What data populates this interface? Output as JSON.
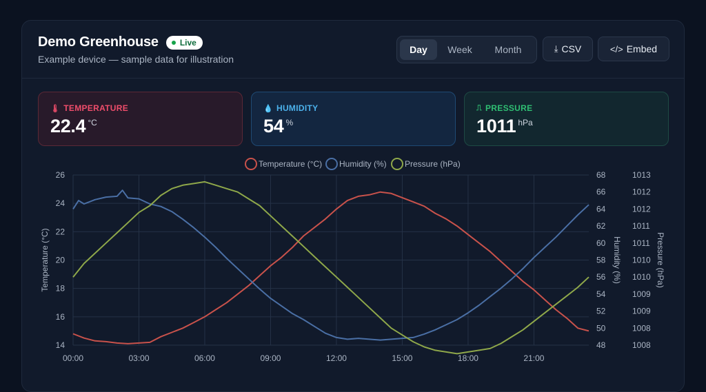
{
  "header": {
    "title": "Demo Greenhouse",
    "live_label": "Live",
    "subtitle": "Example device — sample data for illustration"
  },
  "range_tabs": [
    {
      "label": "Day",
      "active": true
    },
    {
      "label": "Week",
      "active": false
    },
    {
      "label": "Month",
      "active": false
    }
  ],
  "toolbar": {
    "csv_label": "CSV",
    "csv_icon": "download-icon",
    "embed_label": "Embed",
    "embed_icon": "code-icon"
  },
  "stats": {
    "temperature": {
      "label": "TEMPERATURE",
      "value": "22.4",
      "unit": "°C",
      "icon": "thermometer-icon",
      "color": "#ef4d6b"
    },
    "humidity": {
      "label": "HUMIDITY",
      "value": "54",
      "unit": "%",
      "icon": "droplet-icon",
      "color": "#4cb2ec"
    },
    "pressure": {
      "label": "PRESSURE",
      "value": "1011",
      "unit": "hPa",
      "icon": "gauge-icon",
      "color": "#2fbf73"
    }
  },
  "chart_data": {
    "type": "line",
    "x_ticks": [
      "00:00",
      "03:00",
      "06:00",
      "09:00",
      "12:00",
      "15:00",
      "18:00",
      "21:00"
    ],
    "legend_position": "top-center",
    "grid": true,
    "axes": {
      "y_left": {
        "label": "Temperature (°C)",
        "min": 14,
        "max": 26,
        "ticks": [
          "14",
          "16",
          "18",
          "20",
          "22",
          "24",
          "26"
        ]
      },
      "y_right1": {
        "label": "Humidity (%)",
        "min": 48,
        "max": 68,
        "ticks": [
          "48",
          "50",
          "52",
          "54",
          "56",
          "58",
          "60",
          "62",
          "64",
          "66",
          "68"
        ]
      },
      "y_right2": {
        "label": "Pressure (hPa)",
        "min": 1008,
        "max": 1013,
        "ticks": [
          "1008",
          "1008",
          "1009",
          "1009",
          "1010",
          "1010",
          "1011",
          "1011",
          "1012",
          "1012",
          "1013"
        ]
      }
    },
    "series": [
      {
        "name": "Temperature (°C)",
        "axis": "y_left",
        "color": "#c9524b",
        "x": [
          0,
          0.5,
          1,
          1.5,
          2,
          2.5,
          3,
          3.5,
          4,
          4.5,
          5,
          5.5,
          6,
          6.5,
          7,
          7.5,
          8,
          8.5,
          9,
          9.5,
          10,
          10.5,
          11,
          11.5,
          12,
          12.5,
          13,
          13.5,
          14,
          14.5,
          15,
          15.5,
          16,
          16.5,
          17,
          17.5,
          18,
          18.5,
          19,
          19.5,
          20,
          20.5,
          21,
          21.5,
          22,
          22.5,
          23,
          23.5
        ],
        "values": [
          14.8,
          14.5,
          14.3,
          14.25,
          14.15,
          14.1,
          14.15,
          14.2,
          14.6,
          14.9,
          15.2,
          15.6,
          16.0,
          16.5,
          17.0,
          17.6,
          18.2,
          18.9,
          19.6,
          20.2,
          20.9,
          21.7,
          22.3,
          22.9,
          23.6,
          24.2,
          24.5,
          24.6,
          24.8,
          24.7,
          24.4,
          24.1,
          23.8,
          23.3,
          22.9,
          22.4,
          21.8,
          21.2,
          20.6,
          19.9,
          19.2,
          18.5,
          17.9,
          17.2,
          16.5,
          15.9,
          15.2,
          15.0
        ]
      },
      {
        "name": "Humidity (%)",
        "axis": "y_right1",
        "color": "#4a6fa5",
        "x": [
          0,
          0.25,
          0.5,
          1,
          1.5,
          2,
          2.25,
          2.5,
          3,
          3.5,
          4,
          4.5,
          5,
          5.5,
          6,
          6.5,
          7,
          7.5,
          8,
          8.5,
          9,
          9.5,
          10,
          10.5,
          11,
          11.5,
          12,
          12.5,
          13,
          13.5,
          14,
          14.5,
          15,
          15.5,
          16,
          16.5,
          17,
          17.5,
          18,
          18.5,
          19,
          19.5,
          20,
          20.5,
          21,
          21.5,
          22,
          22.5,
          23,
          23.5
        ],
        "values": [
          64.0,
          65.0,
          64.6,
          65.1,
          65.4,
          65.5,
          66.2,
          65.3,
          65.2,
          64.6,
          64.3,
          63.7,
          62.8,
          61.8,
          60.7,
          59.5,
          58.2,
          57.0,
          55.8,
          54.6,
          53.5,
          52.6,
          51.7,
          51.0,
          50.2,
          49.4,
          48.9,
          48.7,
          48.8,
          48.7,
          48.6,
          48.7,
          48.8,
          48.9,
          49.3,
          49.8,
          50.4,
          51.0,
          51.8,
          52.7,
          53.7,
          54.7,
          55.8,
          57.0,
          58.3,
          59.5,
          60.7,
          62.0,
          63.3,
          64.5
        ]
      },
      {
        "name": "Pressure (hPa)",
        "axis": "y_right2",
        "color": "#8fa84a",
        "x": [
          0,
          0.5,
          1,
          1.5,
          2,
          2.5,
          3,
          3.5,
          4,
          4.5,
          5,
          5.5,
          6,
          6.5,
          7,
          7.5,
          8,
          8.5,
          9,
          9.5,
          10,
          10.5,
          11,
          11.5,
          12,
          12.5,
          13,
          13.5,
          14,
          14.5,
          15,
          15.5,
          16,
          16.5,
          17,
          17.5,
          18,
          18.5,
          19,
          19.5,
          20,
          20.5,
          21,
          21.5,
          22,
          22.5,
          23,
          23.5
        ],
        "values": [
          1010.0,
          1010.4,
          1010.7,
          1011.0,
          1011.3,
          1011.6,
          1011.9,
          1012.1,
          1012.4,
          1012.6,
          1012.7,
          1012.75,
          1012.8,
          1012.7,
          1012.6,
          1012.5,
          1012.3,
          1012.1,
          1011.8,
          1011.5,
          1011.2,
          1010.9,
          1010.6,
          1010.3,
          1010.0,
          1009.7,
          1009.4,
          1009.1,
          1008.8,
          1008.5,
          1008.3,
          1008.1,
          1007.95,
          1007.85,
          1007.8,
          1007.75,
          1007.8,
          1007.85,
          1007.9,
          1008.05,
          1008.25,
          1008.45,
          1008.7,
          1008.95,
          1009.2,
          1009.45,
          1009.7,
          1010.0
        ]
      }
    ]
  }
}
